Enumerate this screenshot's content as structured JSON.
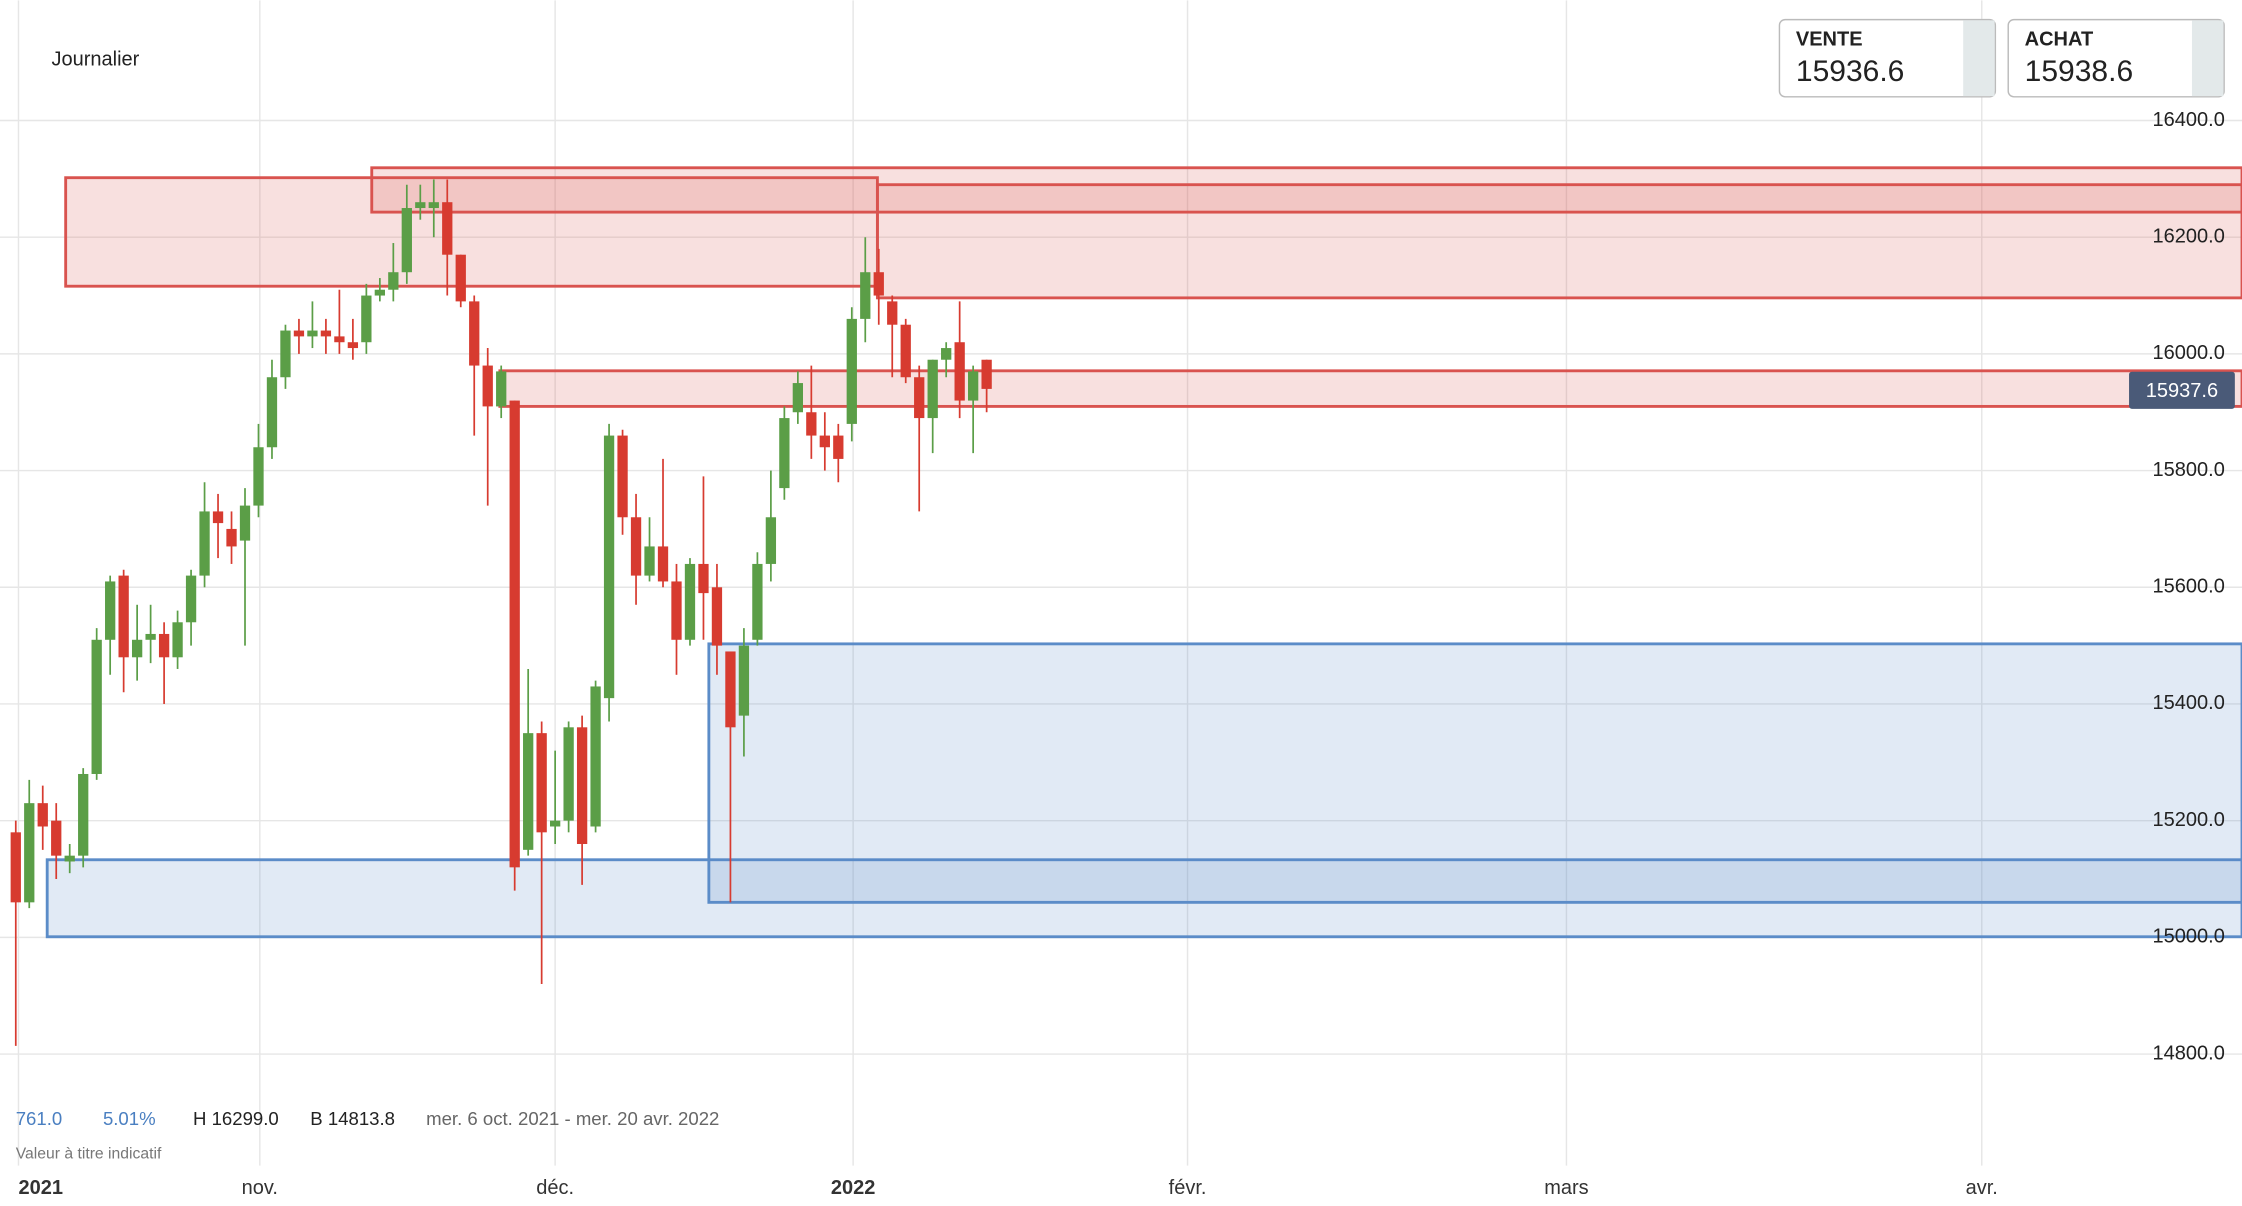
{
  "chart_data": {
    "type": "candlestick",
    "title": "Journalier",
    "x": [
      0,
      1,
      2,
      3,
      4,
      5,
      6,
      7,
      8,
      9,
      10,
      11,
      12,
      13,
      14,
      15,
      16,
      17,
      18,
      19,
      20,
      21,
      22,
      23,
      24,
      25,
      26,
      27,
      28,
      29,
      30,
      31,
      32,
      33,
      34,
      35,
      36,
      37,
      38,
      39,
      40,
      41,
      42,
      43,
      44,
      45,
      46,
      47,
      48,
      49,
      50,
      51,
      52,
      53,
      54,
      55,
      56,
      57,
      58,
      59,
      60,
      61,
      62,
      63,
      64,
      65,
      66,
      67,
      68,
      69,
      70,
      71,
      72
    ],
    "open": [
      15180,
      15060,
      15230,
      15200,
      15130,
      15140,
      15280,
      15510,
      15620,
      15480,
      15510,
      15520,
      15480,
      15540,
      15620,
      15730,
      15700,
      15680,
      15740,
      15840,
      15960,
      16040,
      16030,
      16040,
      16030,
      16020,
      16020,
      16100,
      16110,
      16140,
      16250,
      16250,
      16260,
      16170,
      16090,
      15980,
      15910,
      15920,
      15150,
      15350,
      15190,
      15200,
      15360,
      15190,
      15410,
      15860,
      15720,
      15620,
      15670,
      15610,
      15510,
      15640,
      15600,
      15490,
      15380,
      15510,
      15640,
      15770,
      15900,
      15900,
      15860,
      15860,
      15880,
      16060,
      16140,
      16090,
      16050,
      15960,
      15890,
      15990,
      16020,
      15920,
      15990
    ],
    "high": [
      15200,
      15270,
      15260,
      15230,
      15160,
      15290,
      15530,
      15620,
      15630,
      15570,
      15570,
      15540,
      15560,
      15630,
      15780,
      15760,
      15730,
      15770,
      15880,
      15990,
      16050,
      16060,
      16090,
      16060,
      16110,
      16060,
      16120,
      16130,
      16190,
      16290,
      16290,
      16299,
      16299,
      16170,
      16100,
      16010,
      15980,
      15920,
      15460,
      15370,
      15320,
      15370,
      15380,
      15440,
      15880,
      15870,
      15760,
      15720,
      15820,
      15640,
      15650,
      15790,
      15640,
      15490,
      15530,
      15660,
      15800,
      15910,
      15970,
      15980,
      15900,
      15880,
      16080,
      16200,
      16180,
      16100,
      16060,
      15980,
      15990,
      16020,
      16090,
      15980,
      15990
    ],
    "low": [
      14814,
      15050,
      15150,
      15100,
      15110,
      15120,
      15270,
      15450,
      15420,
      15440,
      15470,
      15400,
      15460,
      15500,
      15600,
      15650,
      15640,
      15500,
      15720,
      15820,
      15940,
      16000,
      16010,
      16000,
      16000,
      15990,
      16000,
      16090,
      16090,
      16120,
      16230,
      16200,
      16100,
      16080,
      15860,
      15740,
      15890,
      15080,
      15140,
      14920,
      15160,
      15180,
      15090,
      15180,
      15370,
      15690,
      15570,
      15610,
      15600,
      15450,
      15500,
      15510,
      15450,
      15060,
      15310,
      15500,
      15610,
      15750,
      15880,
      15820,
      15800,
      15780,
      15850,
      16020,
      16050,
      15960,
      15950,
      15730,
      15830,
      15960,
      15890,
      15830,
      15900
    ],
    "close": [
      15060,
      15230,
      15190,
      15140,
      15140,
      15280,
      15510,
      15610,
      15480,
      15510,
      15520,
      15480,
      15540,
      15620,
      15730,
      15710,
      15670,
      15740,
      15840,
      15960,
      16040,
      16030,
      16040,
      16030,
      16020,
      16010,
      16100,
      16110,
      16140,
      16250,
      16260,
      16260,
      16170,
      16090,
      15980,
      15910,
      15970,
      15120,
      15350,
      15180,
      15200,
      15360,
      15160,
      15430,
      15860,
      15720,
      15620,
      15670,
      15610,
      15510,
      15640,
      15590,
      15500,
      15360,
      15500,
      15640,
      15720,
      15890,
      15950,
      15860,
      15840,
      15820,
      16060,
      16140,
      16100,
      16050,
      15960,
      15890,
      15990,
      16010,
      15920,
      15970,
      15940
    ],
    "up_color": "#5b9e47",
    "down_color": "#d73b30",
    "xlim": [
      -1.17,
      165.1
    ],
    "xticks": [
      {
        "value": 0.2,
        "label": "2021"
      },
      {
        "value": 18.1,
        "label": "nov."
      },
      {
        "value": 40.0,
        "label": "déc."
      },
      {
        "value": 62.1,
        "label": "2022"
      },
      {
        "value": 86.9,
        "label": "févr."
      },
      {
        "value": 115.0,
        "label": "mars"
      },
      {
        "value": 145.8,
        "label": "avr."
      }
    ],
    "ylim": [
      14719,
      16606
    ],
    "yticks": [
      {
        "value": 14800,
        "label": "14800.0"
      },
      {
        "value": 15000,
        "label": "15000.0"
      },
      {
        "value": 15200,
        "label": "15200.0"
      },
      {
        "value": 15400,
        "label": "15400.0"
      },
      {
        "value": 15600,
        "label": "15600.0"
      },
      {
        "value": 15800,
        "label": "15800.0"
      },
      {
        "value": 16000,
        "label": "16000.0"
      },
      {
        "value": 16200,
        "label": "16200.0"
      },
      {
        "value": 16400,
        "label": "16400.0"
      }
    ],
    "grid": true,
    "zones": [
      {
        "x0": 3.7,
        "x1": 63.9,
        "low": 16116,
        "high": 16302,
        "color": "#d9534f"
      },
      {
        "x0": 26.4,
        "x1": 165.1,
        "low": 16243,
        "high": 16319,
        "color": "#d9534f"
      },
      {
        "x0": 63.9,
        "x1": 165.1,
        "low": 16096,
        "high": 16290,
        "color": "#d9534f"
      },
      {
        "x0": 35.9,
        "x1": 165.1,
        "low": 15910,
        "high": 15971,
        "color": "#d9534f"
      },
      {
        "x0": 2.33,
        "x1": 165.1,
        "low": 15001,
        "high": 15133,
        "color": "#5b8cc8"
      },
      {
        "x0": 51.4,
        "x1": 165.1,
        "low": 15060,
        "high": 15503,
        "color": "#5b8cc8"
      }
    ],
    "last_price": 15937.6,
    "sell_label": "VENTE",
    "sell_price": 15936.6,
    "buy_label": "ACHAT",
    "buy_price": 15938.6,
    "change": "761.0",
    "change_pct": "5.01%",
    "high_label": "H 16299.0",
    "low_label": "B 14813.8",
    "period": "mer. 6 oct. 2021 - mer. 20 avr. 2022",
    "disclaimer": "Valeur à titre indicatif"
  }
}
